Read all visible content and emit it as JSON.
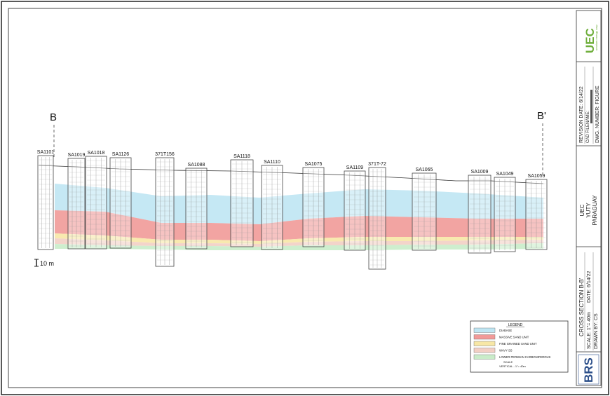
{
  "section": {
    "left_label": "B",
    "right_label": "B'"
  },
  "scale_bar": "10 m",
  "wells": [
    "SA1101",
    "SA1019",
    "SA1018",
    "SA1126",
    "371T156",
    "SA1088",
    "SA1118",
    "SA1110",
    "SA1075",
    "SA1109",
    "371T-72",
    "SA1065",
    "SA1009",
    "SA1049",
    "SA1059"
  ],
  "legend": {
    "title": "LEGEND",
    "items": [
      {
        "label": "DIABASE",
        "color": "#bfe6f3"
      },
      {
        "label": "MASSIVE SAND UNIT",
        "color": "#f19a98"
      },
      {
        "label": "FINE GRAINED SAND UNIT",
        "color": "#f7e7a6"
      },
      {
        "label": "WAVY SS",
        "color": "#f2cfc4"
      },
      {
        "label": "LOWER PERMIAN CARBONIFEROUS",
        "color": "#c9ecc9"
      }
    ],
    "scale_title": "SCALE",
    "scale_text": "VERTICAL - 1\"= 40m"
  },
  "title_block": {
    "logo": "UEC",
    "logo_sub": "uranium energy corp",
    "revision": "REVISION DATE: 6/14/22",
    "cad_filename": "CAD FILENAME:",
    "dwg": "DWG. NUMBER:    FIGURE",
    "client": "UEC",
    "project": "YUTY",
    "country": "PARAGUAY",
    "title": "CROSS SECTION B-B'",
    "scale": "SCALE: 1\"= 40m",
    "date": "DATE: 6/14/22",
    "drawn": "DRAWN BY: CS",
    "brs": "BRS"
  }
}
